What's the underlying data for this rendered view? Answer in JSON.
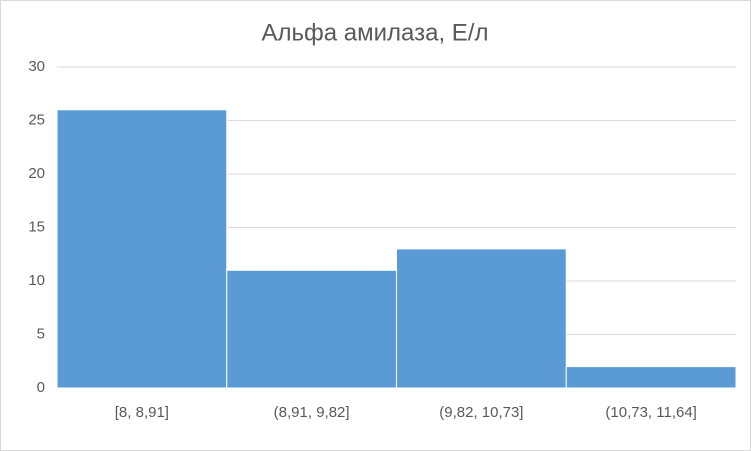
{
  "chart_data": {
    "type": "bar",
    "title": "Альфа амилаза, Е/л",
    "categories": [
      "[8, 8,91]",
      "(8,91, 9,82]",
      "(9,82, 10,73]",
      "(10,73, 11,64]"
    ],
    "values": [
      26,
      11,
      13,
      2
    ],
    "color": "#5b9bd5",
    "ylim": [
      0,
      30
    ],
    "yticks": [
      0,
      5,
      10,
      15,
      20,
      25,
      30
    ],
    "grid": true
  }
}
